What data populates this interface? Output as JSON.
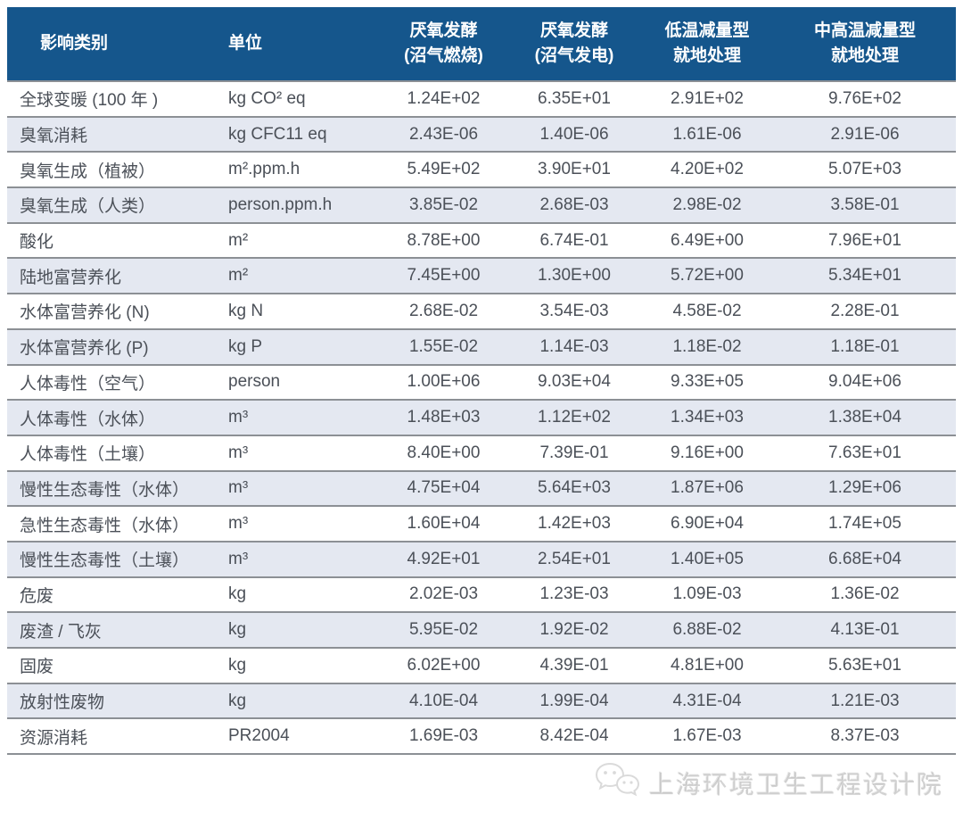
{
  "table": {
    "columns": [
      {
        "label": "影响类别"
      },
      {
        "label": "单位"
      },
      {
        "label": "厌氧发酵\n(沼气燃烧)"
      },
      {
        "label": "厌氧发酵\n(沼气发电)"
      },
      {
        "label": "低温减量型\n就地处理"
      },
      {
        "label": "中高温减量型\n就地处理"
      }
    ],
    "rows": [
      {
        "category": "全球变暖 (100 年 )",
        "unit": "kg CO² eq",
        "values": [
          "1.24E+02",
          "6.35E+01",
          "2.91E+02",
          "9.76E+02"
        ]
      },
      {
        "category": "臭氧消耗",
        "unit": "kg CFC11 eq",
        "values": [
          "2.43E-06",
          "1.40E-06",
          "1.61E-06",
          "2.91E-06"
        ]
      },
      {
        "category": "臭氧生成（植被）",
        "unit": "m².ppm.h",
        "values": [
          "5.49E+02",
          "3.90E+01",
          "4.20E+02",
          "5.07E+03"
        ]
      },
      {
        "category": "臭氧生成（人类）",
        "unit": "person.ppm.h",
        "values": [
          "3.85E-02",
          "2.68E-03",
          "2.98E-02",
          "3.58E-01"
        ]
      },
      {
        "category": "酸化",
        "unit": "m²",
        "values": [
          "8.78E+00",
          "6.74E-01",
          "6.49E+00",
          "7.96E+01"
        ]
      },
      {
        "category": "陆地富营养化",
        "unit": "m²",
        "values": [
          "7.45E+00",
          "1.30E+00",
          "5.72E+00",
          "5.34E+01"
        ]
      },
      {
        "category": "水体富营养化 (N)",
        "unit": "kg N",
        "values": [
          "2.68E-02",
          "3.54E-03",
          "4.58E-02",
          "2.28E-01"
        ]
      },
      {
        "category": "水体富营养化 (P)",
        "unit": "kg P",
        "values": [
          "1.55E-02",
          "1.14E-03",
          "1.18E-02",
          "1.18E-01"
        ]
      },
      {
        "category": "人体毒性（空气）",
        "unit": "person",
        "values": [
          "1.00E+06",
          "9.03E+04",
          "9.33E+05",
          "9.04E+06"
        ]
      },
      {
        "category": "人体毒性（水体）",
        "unit": "m³",
        "values": [
          "1.48E+03",
          "1.12E+02",
          "1.34E+03",
          "1.38E+04"
        ]
      },
      {
        "category": "人体毒性（土壤）",
        "unit": "m³",
        "values": [
          "8.40E+00",
          "7.39E-01",
          "9.16E+00",
          "7.63E+01"
        ]
      },
      {
        "category": "慢性生态毒性（水体）",
        "unit": "m³",
        "values": [
          "4.75E+04",
          "5.64E+03",
          "1.87E+06",
          "1.29E+06"
        ]
      },
      {
        "category": "急性生态毒性（水体）",
        "unit": "m³",
        "values": [
          "1.60E+04",
          "1.42E+03",
          "6.90E+04",
          "1.74E+05"
        ]
      },
      {
        "category": "慢性生态毒性（土壤）",
        "unit": "m³",
        "values": [
          "4.92E+01",
          "2.54E+01",
          "1.40E+05",
          "6.68E+04"
        ]
      },
      {
        "category": "危废",
        "unit": "kg",
        "values": [
          "2.02E-03",
          "1.23E-03",
          "1.09E-03",
          "1.36E-02"
        ]
      },
      {
        "category": "废渣 / 飞灰",
        "unit": "kg",
        "values": [
          "5.95E-02",
          "1.92E-02",
          "6.88E-02",
          "4.13E-01"
        ]
      },
      {
        "category": "固废",
        "unit": "kg",
        "values": [
          "6.02E+00",
          "4.39E-01",
          "4.81E+00",
          "5.63E+01"
        ]
      },
      {
        "category": "放射性废物",
        "unit": "kg",
        "values": [
          "4.10E-04",
          "1.99E-04",
          "4.31E-04",
          "1.21E-03"
        ]
      },
      {
        "category": "资源消耗",
        "unit": "PR2004",
        "values": [
          "1.69E-03",
          "8.42E-04",
          "1.67E-03",
          "8.37E-03"
        ]
      }
    ]
  },
  "watermark": {
    "icon": "wechat-icon",
    "text": "上海环境卫生工程设计院"
  },
  "colors": {
    "header_bg": "#15568C",
    "header_text": "#FFFFFF",
    "row_alt_bg": "#E4E8F1",
    "row_border": "#8C9095",
    "body_text": "#4B5058",
    "watermark_text": "#B0B0B0"
  }
}
